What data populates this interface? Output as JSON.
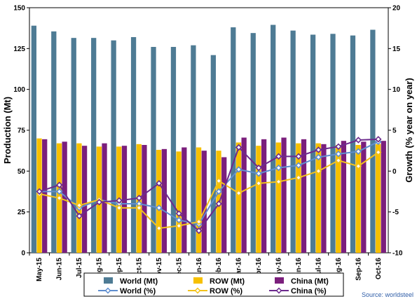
{
  "chart_data": {
    "type": "bar",
    "categories": [
      "May-15",
      "Jun-15",
      "Jul-15",
      "Aug-15",
      "Sep-15",
      "Oct-15",
      "Nov-15",
      "Dec-15",
      "Jan-16",
      "Feb-16",
      "Mar-16",
      "Apr-16",
      "May-16",
      "Jun-16",
      "Jul-16",
      "Aug-16",
      "Sep-16",
      "Oct-16"
    ],
    "ylabel": "Production (Mt)",
    "y2label": "Growth (% year on year)",
    "ylim": [
      0,
      150
    ],
    "yticks": [
      "0",
      "25",
      "50",
      "75",
      "100",
      "125",
      "150"
    ],
    "y2lim": [
      -10,
      20
    ],
    "y2ticks": [
      "-10",
      "-5",
      "0",
      "5",
      "10",
      "15",
      "20"
    ],
    "grid": false,
    "legend_position": "bottom",
    "series": [
      {
        "name": "World (Mt)",
        "type": "bar",
        "axis": "left",
        "color": "#4e7b94",
        "values": [
          139,
          135.5,
          131.5,
          131.5,
          130,
          132,
          126,
          126,
          127,
          121,
          138,
          134.5,
          139.5,
          136,
          133.5,
          134,
          133,
          136.5
        ]
      },
      {
        "name": "ROW (Mt)",
        "type": "bar",
        "axis": "left",
        "color": "#f6c000",
        "values": [
          70,
          67,
          67,
          65,
          65,
          66.5,
          63,
          62,
          64.5,
          62.5,
          67.5,
          65.5,
          67.5,
          67,
          67,
          66,
          66,
          66.5
        ]
      },
      {
        "name": "China (Mt)",
        "type": "bar",
        "axis": "left",
        "color": "#7b1f7c",
        "values": [
          69.5,
          68,
          65.5,
          67,
          65.5,
          66,
          63.5,
          64.5,
          62.5,
          58.5,
          70.5,
          69.5,
          70.5,
          69.5,
          66.5,
          68.5,
          68,
          68.5
        ]
      },
      {
        "name": "World (%)",
        "type": "line",
        "axis": "right",
        "color": "#5f8ecf",
        "marker": "diamond",
        "values": [
          -2.5,
          -2.5,
          -4.5,
          -3.5,
          -4,
          -4,
          -4.5,
          -6,
          -6.5,
          -2.5,
          0.2,
          -0.3,
          0.4,
          0.7,
          1.7,
          2.1,
          2.4,
          3.6
        ]
      },
      {
        "name": "ROW (%)",
        "type": "line",
        "axis": "right",
        "color": "#f2c21b",
        "marker": "diamond",
        "values": [
          -2.8,
          -3.3,
          -4.2,
          -3.5,
          -4.5,
          -4.5,
          -7,
          -6.7,
          -6.2,
          -1.2,
          -2.7,
          -1.5,
          -1.3,
          -0.8,
          0,
          1.3,
          0.6,
          2.3
        ]
      },
      {
        "name": "China (%)",
        "type": "line",
        "axis": "right",
        "color": "#6c2a8d",
        "marker": "diamond",
        "values": [
          -2.5,
          -1.7,
          -5.5,
          -3.8,
          -3.6,
          -3.3,
          -1.5,
          -5.2,
          -7.3,
          -4,
          2.9,
          0.4,
          1.8,
          1.8,
          2.6,
          3,
          3.8,
          3.9
        ]
      }
    ],
    "source": "Source: worldsteel"
  }
}
